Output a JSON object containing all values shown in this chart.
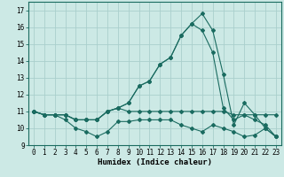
{
  "xlabel": "Humidex (Indice chaleur)",
  "bg_color": "#cce9e5",
  "grid_color": "#aacfcc",
  "line_color": "#1a6b60",
  "xlim": [
    -0.5,
    23.5
  ],
  "ylim": [
    9.0,
    17.5
  ],
  "yticks": [
    9,
    10,
    11,
    12,
    13,
    14,
    15,
    16,
    17
  ],
  "xticks": [
    0,
    1,
    2,
    3,
    4,
    5,
    6,
    7,
    8,
    9,
    10,
    11,
    12,
    13,
    14,
    15,
    16,
    17,
    18,
    19,
    20,
    21,
    22,
    23
  ],
  "series": [
    [
      11.0,
      10.8,
      10.8,
      10.5,
      10.0,
      9.8,
      9.5,
      9.8,
      10.4,
      10.4,
      10.5,
      10.5,
      10.5,
      10.5,
      10.2,
      10.0,
      9.8,
      10.2,
      10.0,
      9.8,
      9.5,
      9.6,
      10.0,
      9.5
    ],
    [
      11.0,
      10.8,
      10.8,
      10.8,
      10.5,
      10.5,
      10.5,
      11.0,
      11.2,
      11.0,
      11.0,
      11.0,
      11.0,
      11.0,
      11.0,
      11.0,
      11.0,
      11.0,
      11.0,
      10.8,
      10.8,
      10.8,
      10.8,
      10.8
    ],
    [
      11.0,
      10.8,
      10.8,
      10.8,
      10.5,
      10.5,
      10.5,
      11.0,
      11.2,
      11.5,
      12.5,
      12.8,
      13.8,
      14.2,
      15.5,
      16.2,
      16.8,
      15.8,
      13.2,
      10.2,
      11.5,
      10.8,
      10.0,
      9.5
    ],
    [
      11.0,
      10.8,
      10.8,
      10.8,
      10.5,
      10.5,
      10.5,
      11.0,
      11.2,
      11.5,
      12.5,
      12.8,
      13.8,
      14.2,
      15.5,
      16.2,
      15.8,
      14.5,
      11.2,
      10.5,
      10.8,
      10.5,
      10.2,
      9.5
    ]
  ],
  "xlabel_fontsize": 6.5,
  "tick_fontsize": 5.5
}
